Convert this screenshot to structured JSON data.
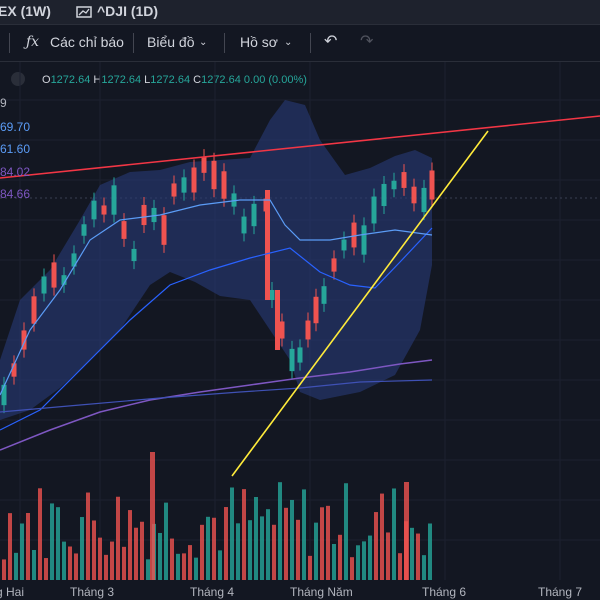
{
  "tabs": [
    {
      "label": "EX (1W)",
      "icon": "chart-compare-icon"
    },
    {
      "label": "^DJI (1D)",
      "icon": "chart-compare-icon"
    }
  ],
  "toolbar": {
    "indicators_label": "Các chỉ báo",
    "chart_type_label": "Biểu đồ",
    "profile_label": "Hồ sơ"
  },
  "ohlc": {
    "o_key": "O",
    "o_val": "1272.64",
    "h_key": "H",
    "h_val": "1272.64",
    "l_key": "L",
    "l_val": "1272.64",
    "c_key": "C",
    "c_val": "1272.64",
    "change": "0.00 (0.00%)"
  },
  "price_labels": [
    {
      "text": "9",
      "color": "#b2b5be"
    },
    {
      "text": "69.70",
      "color": "#5b9cf6"
    },
    {
      "text": "61.60",
      "color": "#5b9cf6"
    },
    {
      "text": "84.02",
      "color": "#7e57c2"
    },
    {
      "text": "84.66",
      "color": "#7e57c2"
    }
  ],
  "x_axis": [
    "g Hai",
    "Tháng 3",
    "Tháng 4",
    "Tháng Năm",
    "Tháng 6",
    "Tháng 7"
  ],
  "colors": {
    "up": "#26a69a",
    "down": "#ef5350",
    "band_fill": "#283a78",
    "trend_resistance": "#f23645",
    "trend_support": "#ffeb3b",
    "ma_fast": "#2962ff",
    "ma_mid": "#5b9cf6",
    "ma_slow": "#7e57c2"
  }
}
